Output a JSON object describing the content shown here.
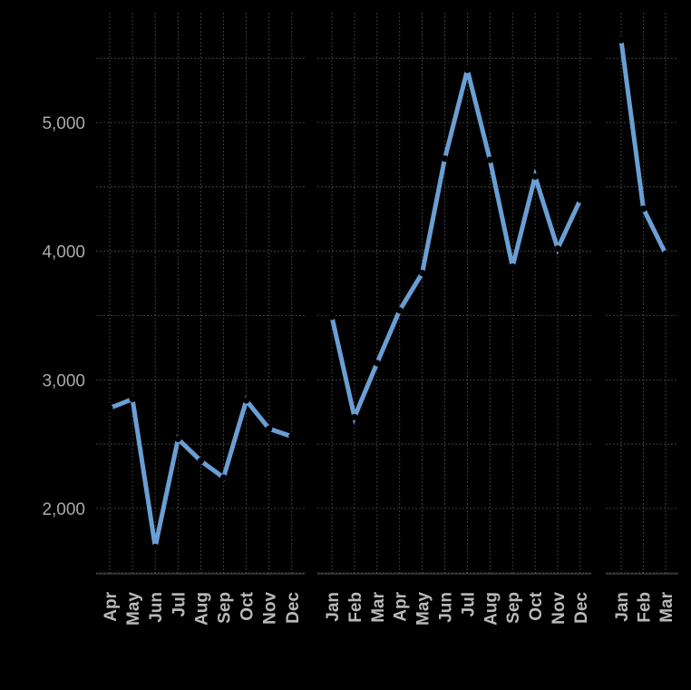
{
  "chart_data": {
    "type": "line",
    "title": "",
    "xlabel": "",
    "ylabel": "",
    "ylim": [
      1500,
      5800
    ],
    "yticks": [
      2000,
      3000,
      4000,
      5000
    ],
    "ytick_labels": [
      "2,000",
      "3,000",
      "4,000",
      "5,000"
    ],
    "grid": true,
    "line_color": "#6a9fd4",
    "marker_color": "#000000",
    "background": "#000000",
    "panels": [
      {
        "categories": [
          "Apr",
          "May",
          "Jun",
          "Jul",
          "Aug",
          "Sep",
          "Oct",
          "Nov",
          "Dec"
        ],
        "values": [
          2780,
          2850,
          1700,
          2540,
          2370,
          2240,
          2840,
          2620,
          2560
        ]
      },
      {
        "categories": [
          "Jan",
          "Feb",
          "Mar",
          "Apr",
          "May",
          "Jun",
          "Jul",
          "Aug",
          "Sep",
          "Oct",
          "Nov",
          "Dec"
        ],
        "values": [
          3490,
          2710,
          3130,
          3540,
          3830,
          4720,
          5410,
          4710,
          3880,
          4580,
          4020,
          4400
        ]
      },
      {
        "categories": [
          "Jan",
          "Feb",
          "Mar"
        ],
        "values": [
          5640,
          4330,
          3980
        ]
      }
    ]
  }
}
